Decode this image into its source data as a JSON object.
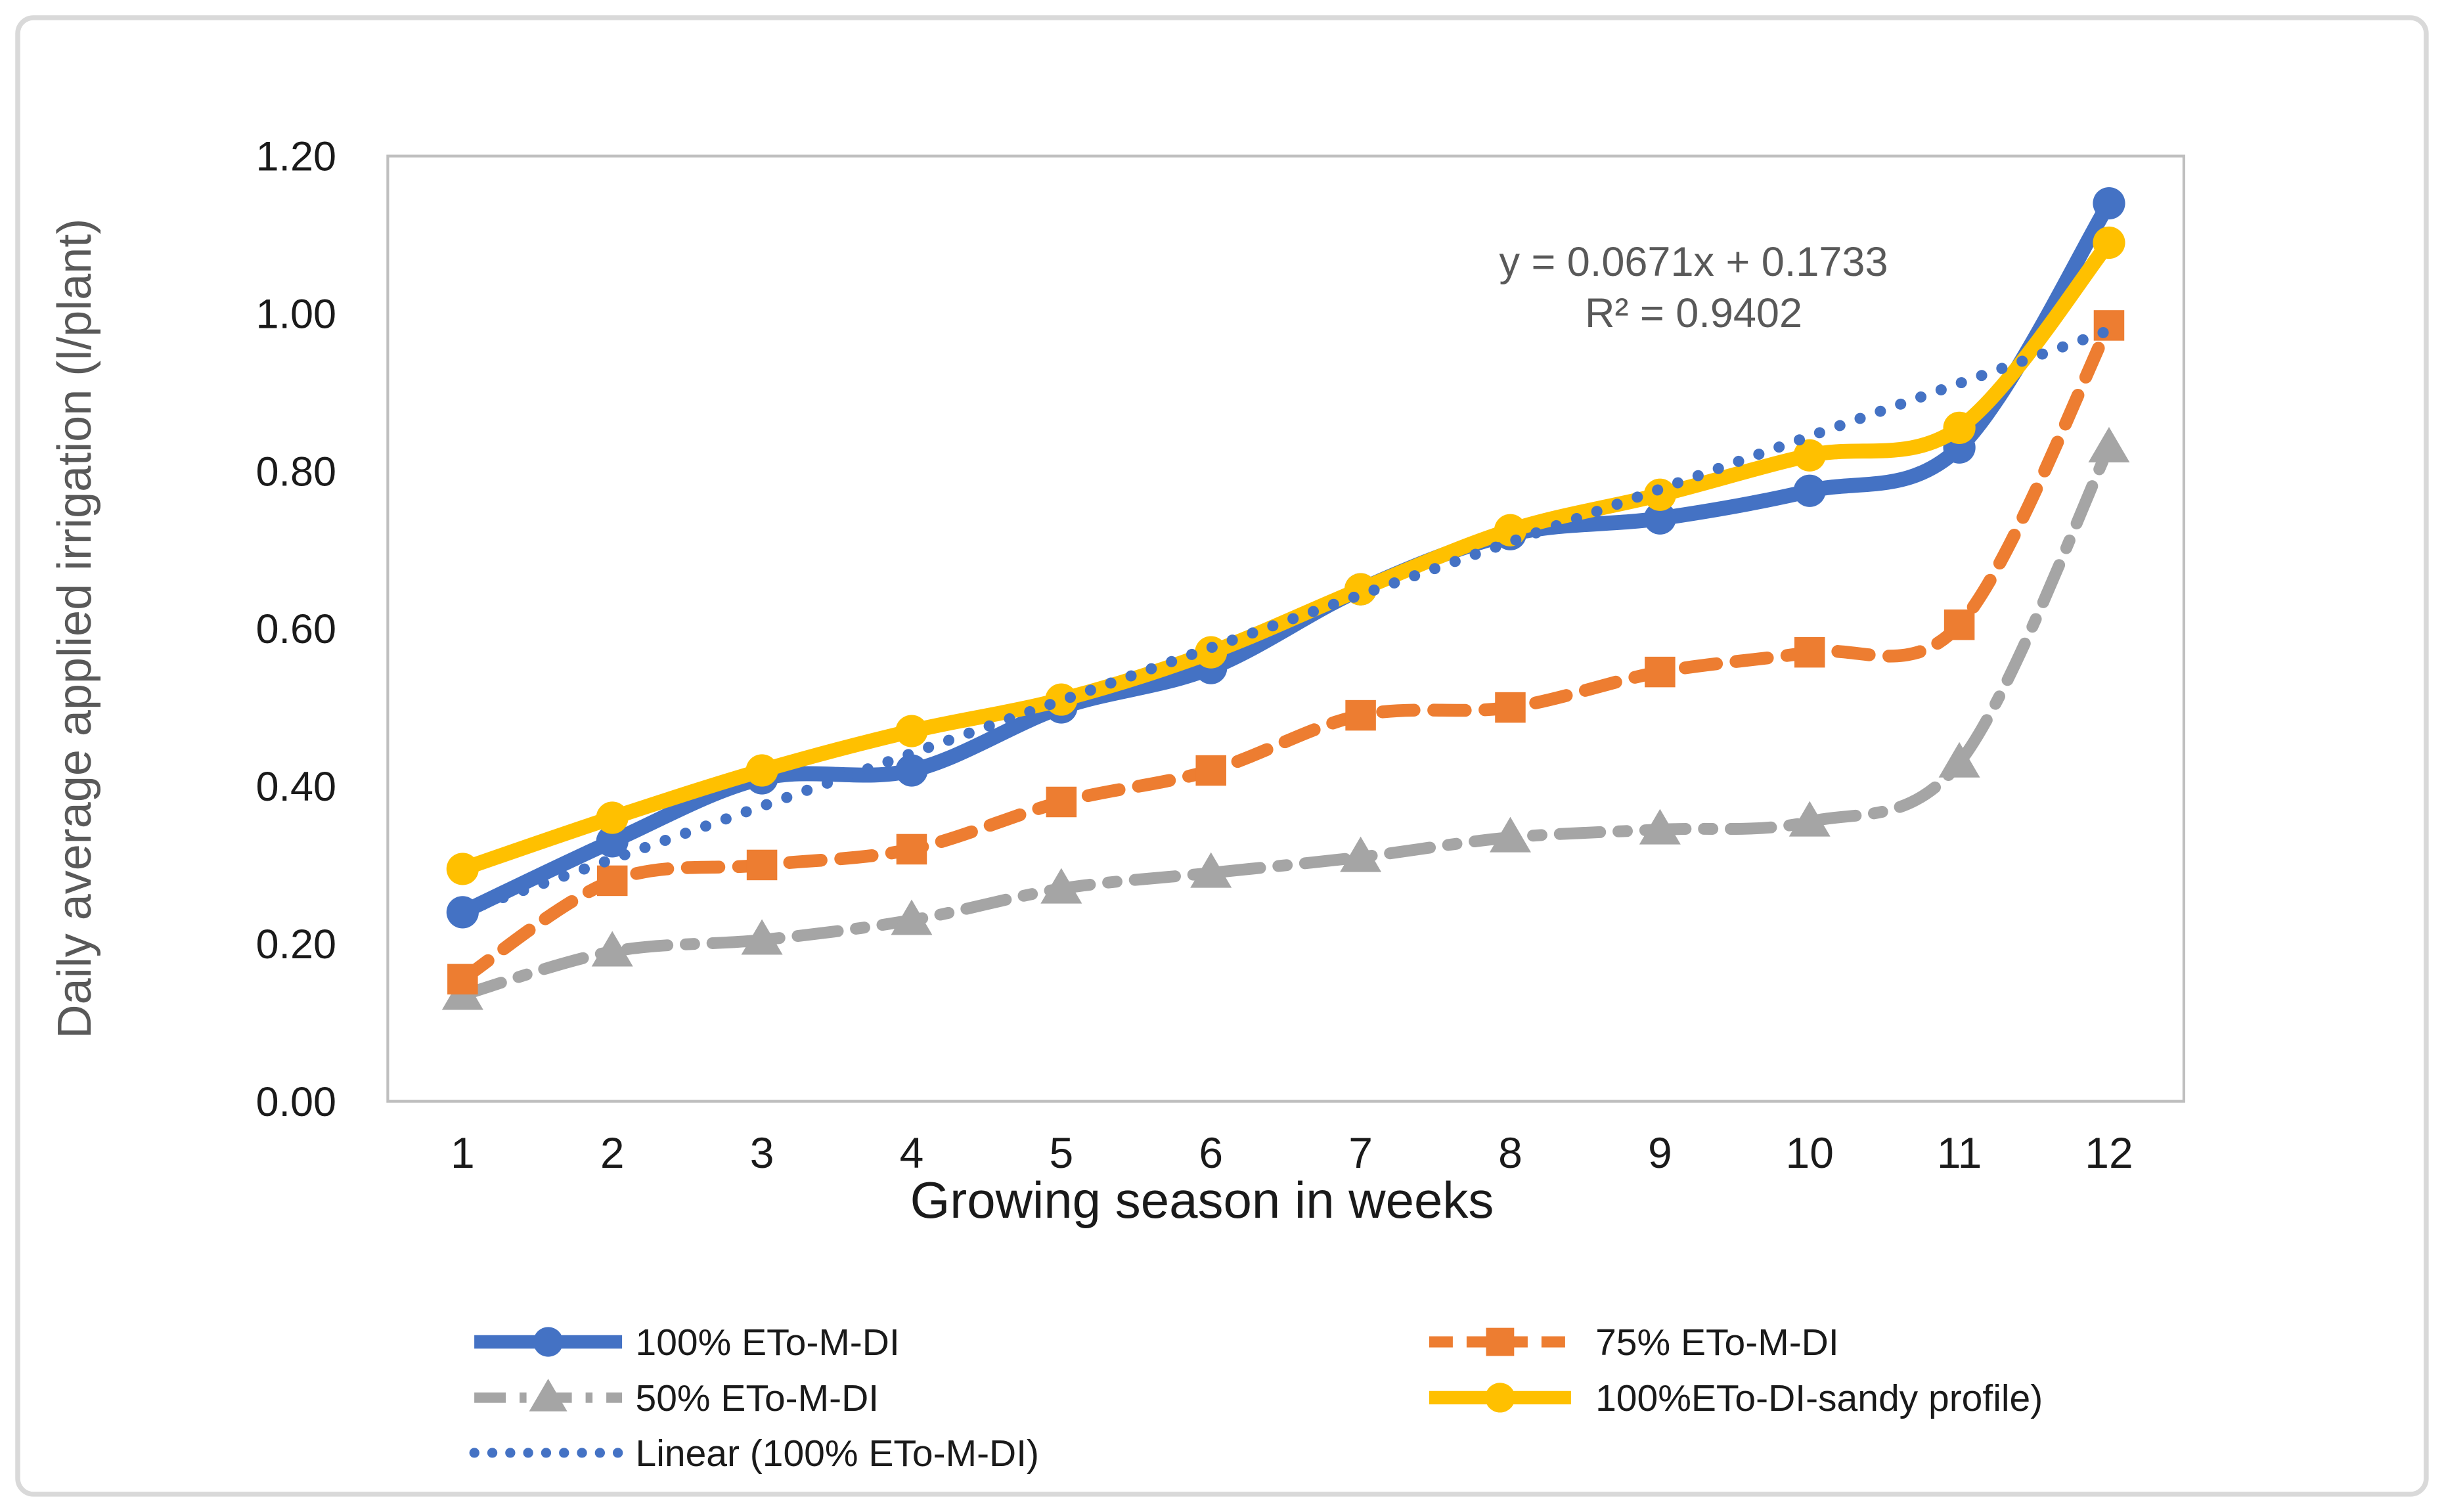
{
  "figure": {
    "background": "#FFFFFF",
    "outer_border_color": "#D9D9D9",
    "plot_border_color": "#BFBFBF",
    "tick_label_color": "#1A1A1A",
    "axis_title_color_x": "#1A1A1A",
    "axis_title_color_y": "#595959",
    "annotation_color": "#595959"
  },
  "chart_data": {
    "type": "line",
    "title": "",
    "xlabel": "Growing season in weeks",
    "ylabel": "Daily average applied irrigation (l/plant)",
    "x": [
      1,
      2,
      3,
      4,
      5,
      6,
      7,
      8,
      9,
      10,
      11,
      12
    ],
    "ylim": [
      0.0,
      1.2
    ],
    "ytick_step": 0.2,
    "ytick_labels": [
      "0.00",
      "0.20",
      "0.40",
      "0.60",
      "0.80",
      "1.00",
      "1.20"
    ],
    "grid": "off",
    "legend_position": "bottom",
    "series": [
      {
        "name": "100% ETo-M-DI",
        "color": "#4472C4",
        "marker": "circle",
        "line_style": "solid",
        "values": [
          0.24,
          0.33,
          0.41,
          0.42,
          0.5,
          0.55,
          0.65,
          0.72,
          0.74,
          0.775,
          0.83,
          1.14
        ]
      },
      {
        "name": "75% ETo-M-DI",
        "color": "#ED7D31",
        "marker": "square",
        "line_style": "dashed",
        "values": [
          0.155,
          0.28,
          0.3,
          0.32,
          0.38,
          0.42,
          0.49,
          0.5,
          0.545,
          0.57,
          0.605,
          0.985
        ]
      },
      {
        "name": "50% ETo-M-DI",
        "color": "#A5A5A5",
        "marker": "triangle",
        "line_style": "dashdot",
        "values": [
          0.135,
          0.19,
          0.205,
          0.23,
          0.27,
          0.29,
          0.31,
          0.335,
          0.345,
          0.355,
          0.43,
          0.83
        ]
      },
      {
        "name": "100%ETo-DI-sandy profile)",
        "color": "#FFC000",
        "marker": "circle",
        "line_style": "solid",
        "values": [
          0.295,
          0.36,
          0.42,
          0.47,
          0.51,
          0.57,
          0.65,
          0.725,
          0.77,
          0.82,
          0.855,
          1.09
        ]
      },
      {
        "name": "Linear (100% ETo-M-DI)",
        "color": "#4472C4",
        "marker": "none",
        "line_style": "dotted",
        "trendline": {
          "slope": 0.0671,
          "intercept": 0.1733,
          "x_start": 1,
          "x_end": 12
        }
      }
    ],
    "annotation": {
      "line1": "y = 0.0671x + 0.1733",
      "line2": "R² = 0.9402"
    }
  }
}
